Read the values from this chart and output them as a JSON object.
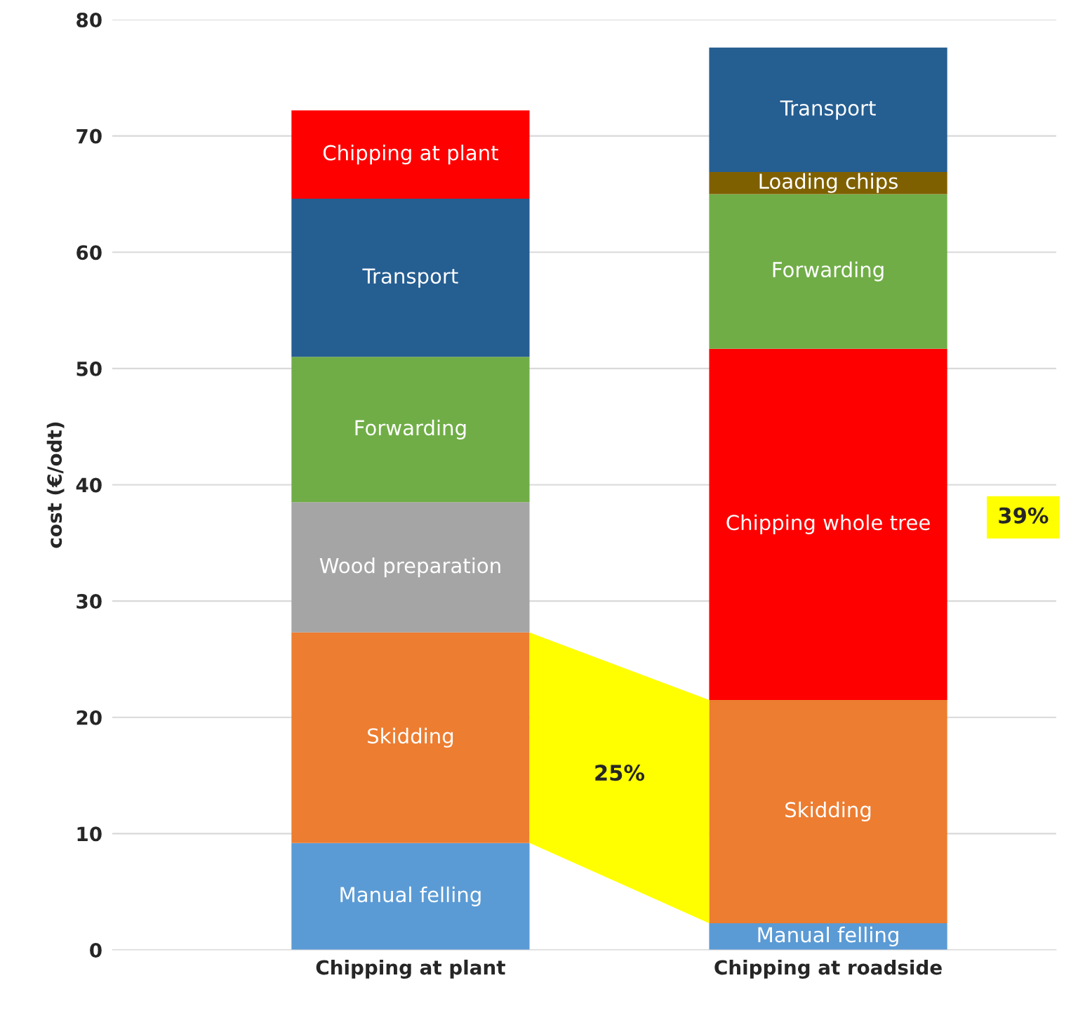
{
  "chart_data": {
    "type": "bar",
    "stacked": true,
    "ylabel": "cost (€/odt)",
    "categories": [
      "Chipping at plant",
      "Chipping at roadside"
    ],
    "series": [
      {
        "name": "Manual felling",
        "color": "#5b9bd5",
        "values": [
          9.2,
          2.3
        ]
      },
      {
        "name": "Skidding",
        "color": "#ed7d31",
        "values": [
          18.1,
          19.2
        ]
      },
      {
        "name": "Wood preparation",
        "color": "#a5a5a5",
        "values": [
          11.2,
          null
        ]
      },
      {
        "name": "Chipping whole tree",
        "color": "#ff0000",
        "values": [
          null,
          30.2
        ]
      },
      {
        "name": "Forwarding",
        "color": "#70ad47",
        "values": [
          12.5,
          13.3
        ]
      },
      {
        "name": "Loading chips",
        "color": "#7f6000",
        "values": [
          null,
          1.9
        ]
      },
      {
        "name": "Transport",
        "color": "#255e91",
        "values": [
          13.6,
          10.7
        ]
      },
      {
        "name": "Chipping at plant",
        "color": "#ff0000",
        "values": [
          7.6,
          null
        ]
      }
    ],
    "ylim": [
      0,
      80
    ],
    "yticks": [
      0,
      10,
      20,
      30,
      40,
      50,
      60,
      70,
      80
    ],
    "grid": "y",
    "legend": false,
    "annotations": [
      "25%",
      "39%"
    ]
  }
}
